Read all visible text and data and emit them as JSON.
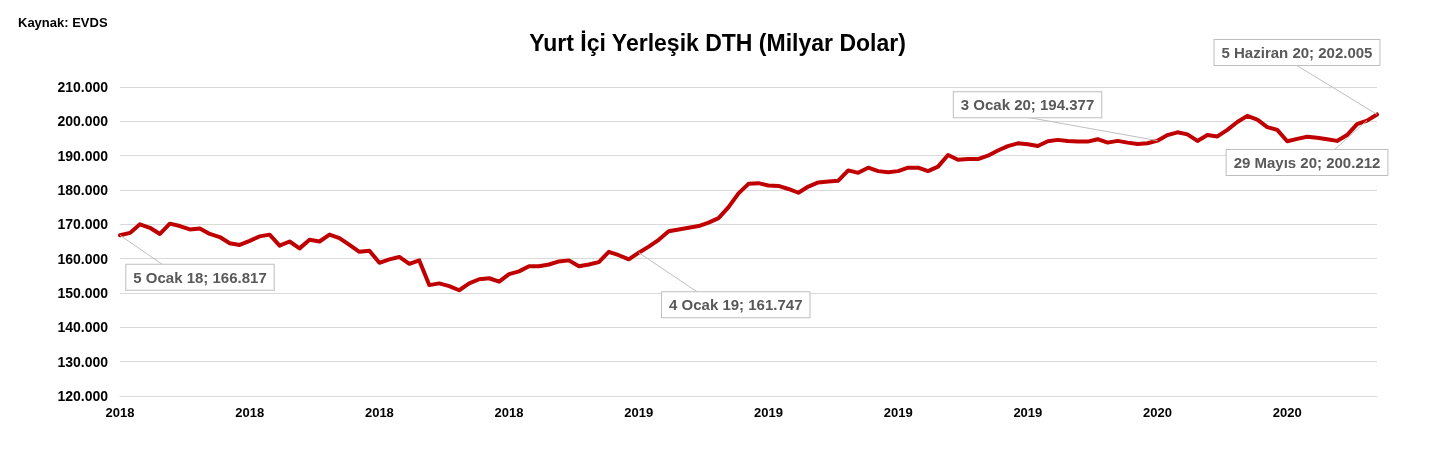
{
  "chart_data": {
    "type": "line",
    "title": "Yurt İçi Yerleşik DTH (Milyar Dolar)",
    "annotations": [
      "Kaynak: EVDS"
    ],
    "categories": [
      "2018",
      null,
      null,
      null,
      null,
      null,
      null,
      null,
      null,
      null,
      null,
      null,
      null,
      "2018",
      null,
      null,
      null,
      null,
      null,
      null,
      null,
      null,
      null,
      null,
      null,
      null,
      "2018",
      null,
      null,
      null,
      null,
      null,
      null,
      null,
      null,
      null,
      null,
      null,
      null,
      "2018",
      null,
      null,
      null,
      null,
      null,
      null,
      null,
      null,
      null,
      null,
      null,
      null,
      "2019",
      null,
      null,
      null,
      null,
      null,
      null,
      null,
      null,
      null,
      null,
      null,
      null,
      "2019",
      null,
      null,
      null,
      null,
      null,
      null,
      null,
      null,
      null,
      null,
      null,
      null,
      "2019",
      null,
      null,
      null,
      null,
      null,
      null,
      null,
      null,
      null,
      null,
      null,
      null,
      "2019",
      null,
      null,
      null,
      null,
      null,
      null,
      null,
      null,
      null,
      null,
      null,
      null,
      "2020",
      null,
      null,
      null,
      null,
      null,
      null,
      null,
      null,
      null,
      null,
      null,
      null,
      "2020",
      null,
      null,
      null,
      null,
      null,
      null,
      null,
      null,
      null
    ],
    "values": [
      166.817,
      167.5,
      170,
      169,
      167.2,
      170.2,
      169.5,
      168.5,
      168.8,
      167.2,
      166.3,
      164.5,
      164,
      165.2,
      166.5,
      167,
      163.8,
      165,
      163,
      165.5,
      165,
      167,
      166,
      164,
      162,
      162.3,
      158.8,
      159.8,
      160.5,
      158.5,
      159.5,
      152.3,
      152.8,
      152,
      150.8,
      152.8,
      154,
      154.3,
      153.3,
      155.5,
      156.3,
      157.8,
      157.8,
      158.3,
      159.2,
      159.5,
      157.8,
      158.3,
      159,
      162,
      161,
      159.8,
      161.747,
      163.5,
      165.5,
      168,
      168.5,
      169,
      169.5,
      170.5,
      171.8,
      175,
      179,
      181.8,
      182,
      181.3,
      181.2,
      180.3,
      179.2,
      181,
      182.2,
      182.5,
      182.7,
      185.7,
      185,
      186.5,
      185.5,
      185.2,
      185.5,
      186.5,
      186.5,
      185.5,
      186.8,
      190.2,
      188.8,
      189,
      189,
      190,
      191.5,
      192.8,
      193.6,
      193.3,
      192.8,
      194.2,
      194.6,
      194.3,
      194.1,
      194.1,
      194.8,
      193.8,
      194.3,
      193.8,
      193.4,
      193.6,
      194.377,
      196,
      196.8,
      196.2,
      194.3,
      196,
      195.6,
      197.5,
      199.8,
      201.6,
      200.5,
      198.3,
      197.5,
      194.2,
      194.9,
      195.5,
      195.2,
      194.8,
      194.3,
      196,
      199.2,
      200.212,
      202.005
    ],
    "value_labels": [
      "5 Ocak 18; 166.817",
      null,
      null,
      null,
      null,
      null,
      null,
      null,
      null,
      null,
      null,
      null,
      null,
      null,
      null,
      null,
      null,
      null,
      null,
      null,
      null,
      null,
      null,
      null,
      null,
      null,
      null,
      null,
      null,
      null,
      null,
      null,
      null,
      null,
      null,
      null,
      null,
      null,
      null,
      null,
      null,
      null,
      null,
      null,
      null,
      null,
      null,
      null,
      null,
      null,
      null,
      null,
      "4 Ocak 19; 161.747",
      null,
      null,
      null,
      null,
      null,
      null,
      null,
      null,
      null,
      null,
      null,
      null,
      null,
      null,
      null,
      null,
      null,
      null,
      null,
      null,
      null,
      null,
      null,
      null,
      null,
      null,
      null,
      null,
      null,
      null,
      null,
      null,
      null,
      null,
      null,
      null,
      null,
      null,
      null,
      null,
      null,
      null,
      null,
      null,
      null,
      null,
      null,
      null,
      null,
      null,
      null,
      "3 Ocak 20; 194.377",
      null,
      null,
      null,
      null,
      null,
      null,
      null,
      null,
      null,
      null,
      null,
      null,
      null,
      null,
      null,
      null,
      null,
      null,
      null,
      null,
      "29 Mayıs 20; 200.212",
      "5 Haziran 20; 202.005"
    ],
    "color": "#c00000",
    "ylim": [
      120,
      210
    ],
    "yticks": [
      {
        "value": 120,
        "label": "120.000"
      },
      {
        "value": 130,
        "label": "130.000"
      },
      {
        "value": 140,
        "label": "140.000"
      },
      {
        "value": 150,
        "label": "150.000"
      },
      {
        "value": 160,
        "label": "160.000"
      },
      {
        "value": 170,
        "label": "170.000"
      },
      {
        "value": 180,
        "label": "180.000"
      },
      {
        "value": 190,
        "label": "190.000"
      },
      {
        "value": 200,
        "label": "200.000"
      },
      {
        "value": 210,
        "label": "210.000"
      }
    ],
    "grid": "y",
    "marker": "none",
    "line_style": "solid"
  }
}
